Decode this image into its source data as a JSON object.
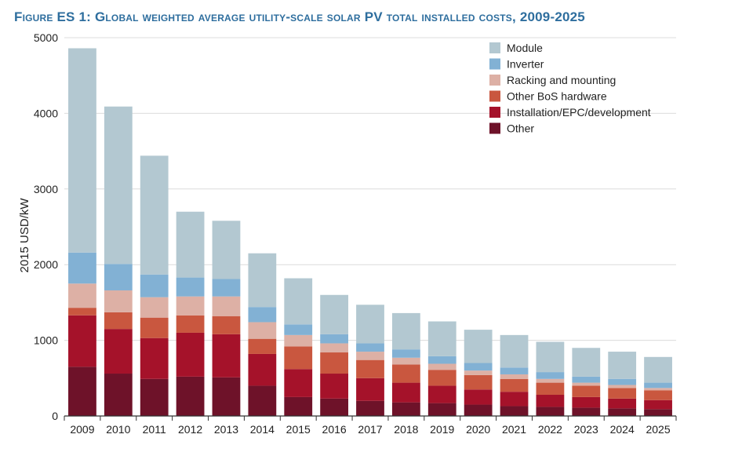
{
  "title": "Figure ES 1: Global weighted average utility-scale solar PV total installed costs, 2009-2025",
  "chart_data": {
    "type": "bar",
    "stacked": true,
    "title": "Figure ES 1: Global weighted average utility-scale solar PV total installed costs, 2009-2025",
    "xlabel": "",
    "ylabel": "2015 USD/kW",
    "ylim": [
      0,
      5000
    ],
    "yticks": [
      0,
      1000,
      2000,
      3000,
      4000,
      5000
    ],
    "grid": true,
    "legend_position": "top-right",
    "categories": [
      "2009",
      "2010",
      "2011",
      "2012",
      "2013",
      "2014",
      "2015",
      "2016",
      "2017",
      "2018",
      "2019",
      "2020",
      "2021",
      "2022",
      "2023",
      "2024",
      "2025"
    ],
    "series": [
      {
        "name": "Other",
        "color": "#6e1229",
        "values": [
          650,
          560,
          490,
          520,
          510,
          400,
          250,
          230,
          200,
          180,
          170,
          150,
          130,
          120,
          110,
          100,
          90
        ]
      },
      {
        "name": "Installation/EPC/development",
        "color": "#a5122a",
        "values": [
          680,
          590,
          540,
          580,
          570,
          420,
          370,
          330,
          300,
          260,
          230,
          200,
          190,
          160,
          140,
          130,
          120
        ]
      },
      {
        "name": "Other BoS hardware",
        "color": "#c9573f",
        "values": [
          100,
          220,
          270,
          230,
          240,
          200,
          300,
          280,
          240,
          240,
          210,
          190,
          170,
          160,
          150,
          140,
          130
        ]
      },
      {
        "name": "Racking and mounting",
        "color": "#ddb0a5",
        "values": [
          320,
          290,
          270,
          250,
          260,
          220,
          150,
          120,
          110,
          90,
          80,
          60,
          60,
          50,
          40,
          40,
          30
        ]
      },
      {
        "name": "Inverter",
        "color": "#82b1d4",
        "values": [
          410,
          350,
          300,
          250,
          230,
          200,
          140,
          120,
          110,
          110,
          100,
          100,
          90,
          90,
          80,
          80,
          70
        ]
      },
      {
        "name": "Module",
        "color": "#b3c8d1",
        "values": [
          2700,
          2080,
          1570,
          870,
          770,
          710,
          610,
          520,
          510,
          480,
          460,
          440,
          430,
          400,
          380,
          360,
          340
        ]
      }
    ]
  }
}
